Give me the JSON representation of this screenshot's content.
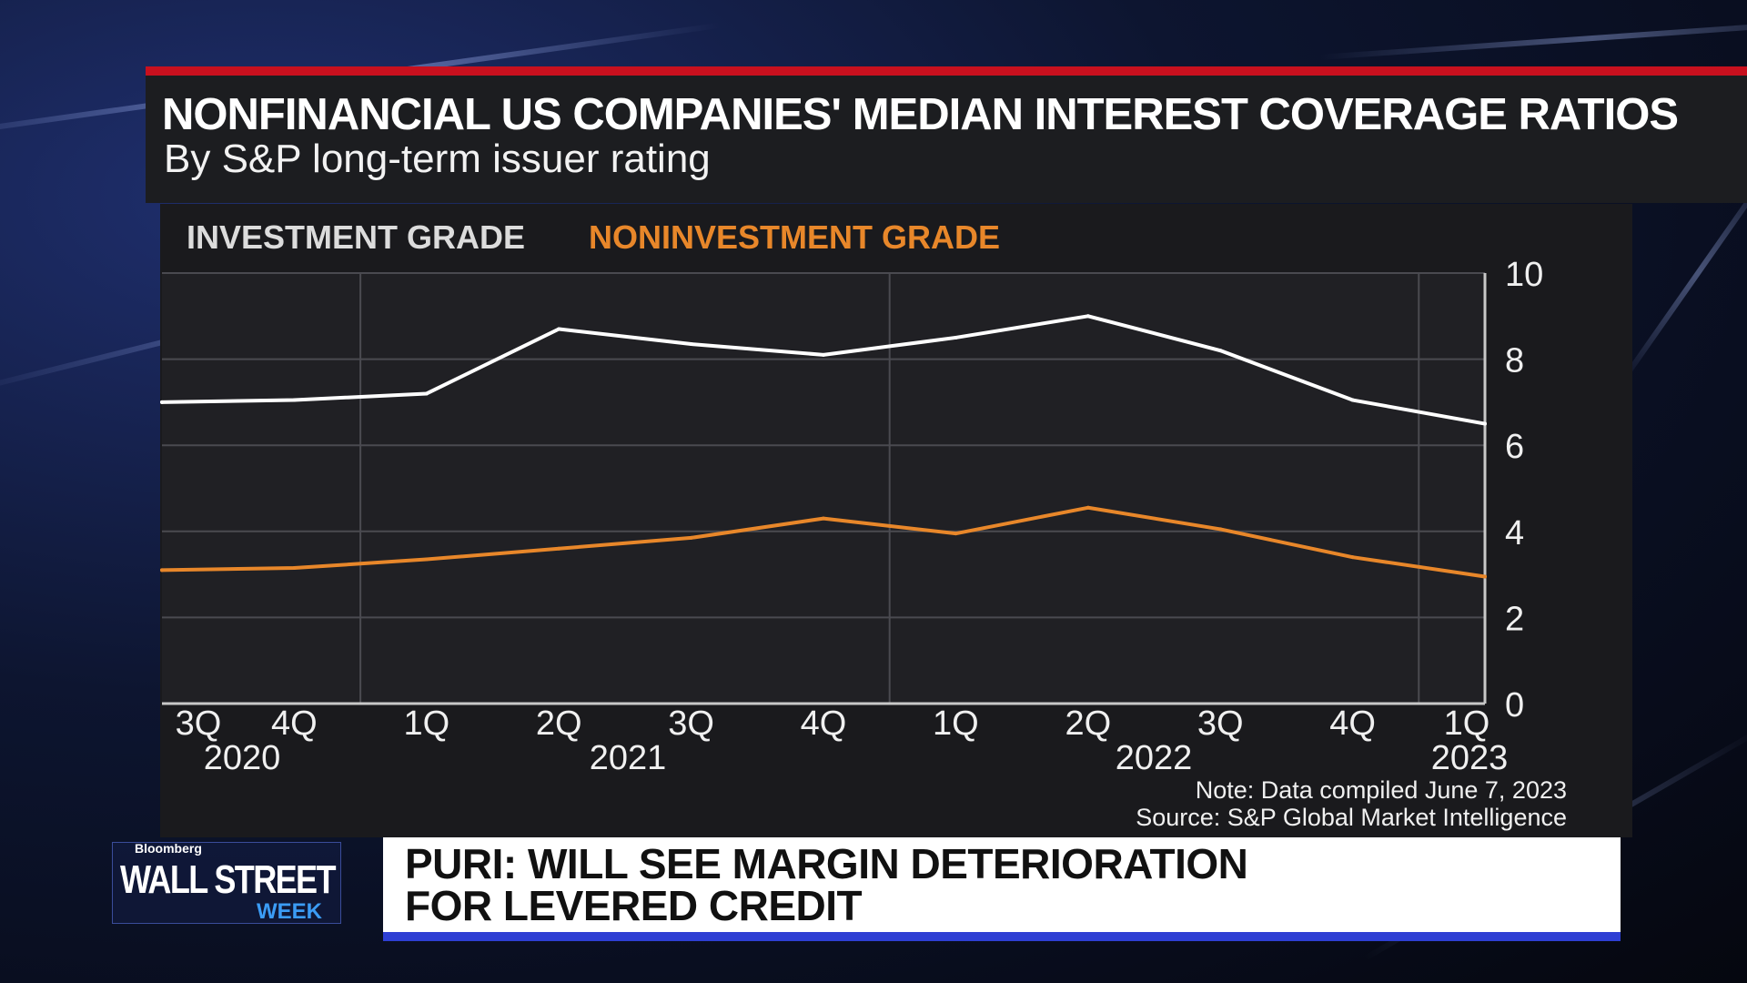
{
  "header": {
    "title": "NONFINANCIAL US COMPANIES' MEDIAN INTEREST COVERAGE RATIOS",
    "subtitle": "By S&P long-term issuer rating"
  },
  "legend": {
    "investment_grade": "INVESTMENT GRADE",
    "noninvestment_grade": "NONINVESTMENT GRADE"
  },
  "footnote": {
    "note": "Note: Data compiled June 7, 2023",
    "source": "Source: S&P Global Market Intelligence"
  },
  "lower_third": {
    "line1": "PURI: WILL SEE MARGIN DETERIORATION",
    "line2": "FOR LEVERED CREDIT"
  },
  "logo": {
    "brand": "Bloomberg",
    "main": "WALL STREET",
    "sub": "WEEK"
  },
  "colors": {
    "investment_grade": "#ffffff",
    "noninvestment_grade": "#e8872a",
    "accent_red": "#c8101e",
    "accent_blue": "#2e3fd4"
  },
  "chart_data": {
    "type": "line",
    "x": [
      "3Q 2020",
      "4Q 2020",
      "1Q 2021",
      "2Q 2021",
      "3Q 2021",
      "4Q 2021",
      "1Q 2022",
      "2Q 2022",
      "3Q 2022",
      "4Q 2022",
      "1Q 2023"
    ],
    "quarter_ticks": [
      "3Q",
      "4Q",
      "1Q",
      "2Q",
      "3Q",
      "4Q",
      "1Q",
      "2Q",
      "3Q",
      "4Q",
      "1Q"
    ],
    "year_labels": [
      {
        "label": "2020",
        "after_index": 0
      },
      {
        "label": "2021",
        "after_index": 3
      },
      {
        "label": "2022",
        "after_index": 7
      },
      {
        "label": "2023",
        "after_index": 10
      }
    ],
    "series": [
      {
        "name": "INVESTMENT GRADE",
        "color": "#ffffff",
        "values": [
          7.0,
          7.05,
          7.2,
          8.7,
          8.35,
          8.1,
          8.5,
          9.0,
          8.2,
          7.05,
          6.5
        ]
      },
      {
        "name": "NONINVESTMENT GRADE",
        "color": "#e8872a",
        "values": [
          3.1,
          3.15,
          3.35,
          3.6,
          3.85,
          4.3,
          3.95,
          4.55,
          4.05,
          3.4,
          2.95
        ]
      }
    ],
    "y_ticks": [
      0,
      2,
      4,
      6,
      8,
      10
    ],
    "ylim": [
      0,
      10
    ],
    "y_axis_side": "right",
    "grid": true
  }
}
